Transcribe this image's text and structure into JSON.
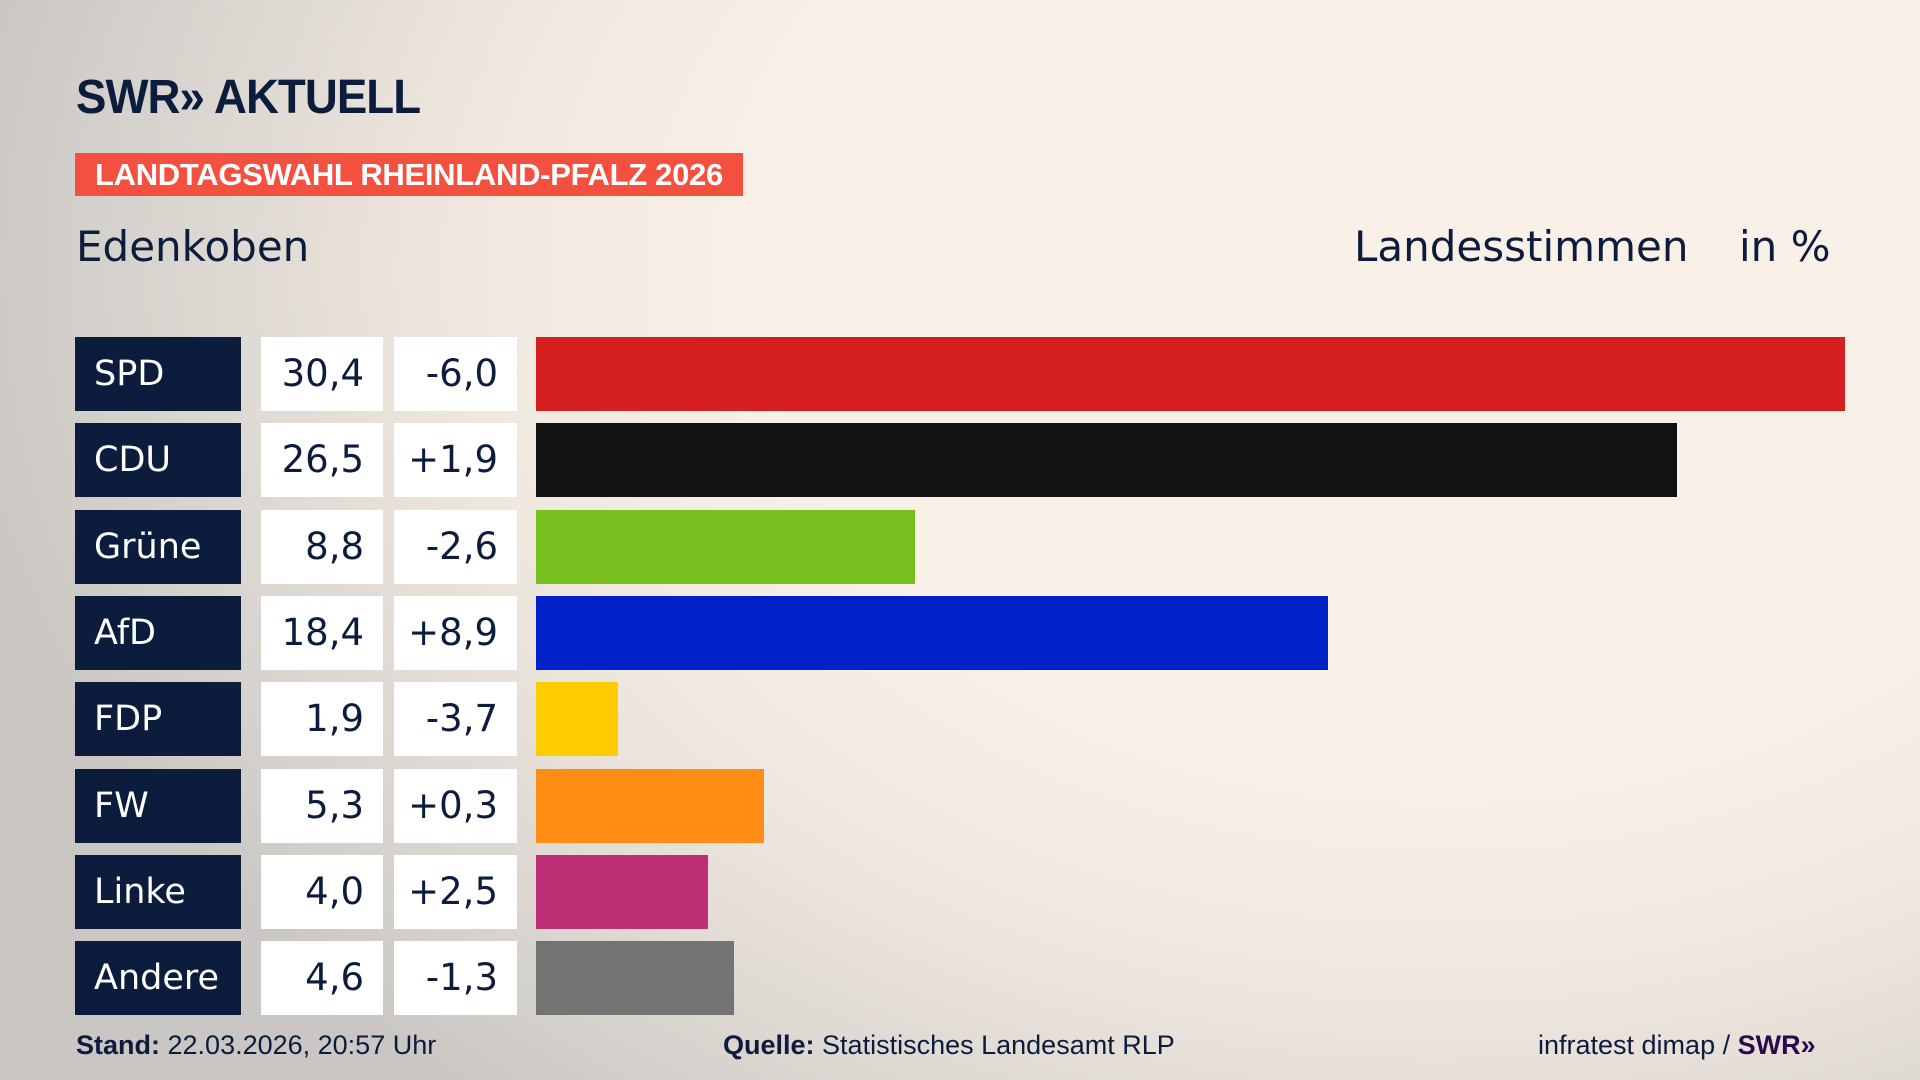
{
  "header": {
    "logo": "SWR» AKTUELL",
    "banner": "LANDTAGSWAHL RHEINLAND-PFALZ 2026",
    "region": "Edenkoben",
    "metric": "Landesstimmen",
    "unit": "in %"
  },
  "chart_data": {
    "type": "bar",
    "orientation": "horizontal",
    "xlim": [
      0,
      30.4
    ],
    "grid": false,
    "categories": [
      "SPD",
      "CDU",
      "Grüne",
      "AfD",
      "FDP",
      "FW",
      "Linke",
      "Andere"
    ],
    "values": [
      30.4,
      26.5,
      8.8,
      18.4,
      1.9,
      5.3,
      4.0,
      4.6
    ],
    "value_labels": [
      "30,4",
      "26,5",
      "8,8",
      "18,4",
      "1,9",
      "5,3",
      "4,0",
      "4,6"
    ],
    "change_labels": [
      "-6,0",
      "+1,9",
      "-2,6",
      "+8,9",
      "-3,7",
      "+0,3",
      "+2,5",
      "-1,3"
    ],
    "changes": [
      -6.0,
      1.9,
      -2.6,
      8.9,
      -3.7,
      0.3,
      2.5,
      -1.3
    ],
    "colors": [
      "#d62020",
      "#121212",
      "#78be1e",
      "#0020c8",
      "#ffcc00",
      "#ff8c14",
      "#be3075",
      "#737373"
    ]
  },
  "footer": {
    "stand_label": "Stand:",
    "stand_value": "22.03.2026, 20:57 Uhr",
    "source_label": "Quelle:",
    "source_value": "Statistisches Landesamt RLP",
    "credit": "infratest dimap /",
    "credit_logo": "SWR»"
  }
}
